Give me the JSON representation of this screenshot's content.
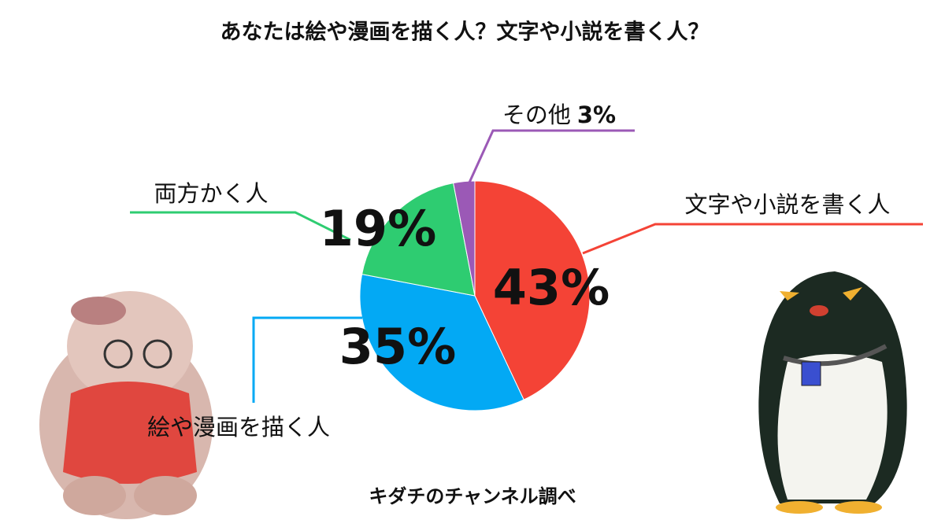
{
  "chart_data": {
    "type": "pie",
    "title": "あなたは絵や漫画を描く人？文字や小説を書く人？",
    "categories": [
      "文字や小説を書く人",
      "絵や漫画を描く人",
      "両方かく人",
      "その他"
    ],
    "values": [
      43,
      35,
      19,
      3
    ],
    "value_labels": [
      "43%",
      "35%",
      "19%",
      "3%"
    ],
    "colors": [
      "#f44336",
      "#03a9f4",
      "#2ecc71",
      "#9b59b6"
    ],
    "source": "キダチのチャンネル調べ"
  }
}
